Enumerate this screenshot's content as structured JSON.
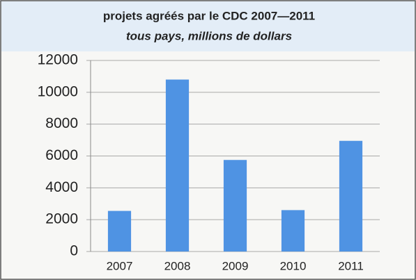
{
  "chart_data": {
    "type": "bar",
    "title": "projets agréés par le CDC 2007—2011",
    "subtitle": "tous pays, millions de dollars",
    "categories": [
      "2007",
      "2008",
      "2009",
      "2010",
      "2011"
    ],
    "values": [
      2550,
      10800,
      5750,
      2600,
      6950
    ],
    "color": "#4f93e3",
    "ylim": [
      0,
      12000
    ],
    "yticks": [
      0,
      2000,
      4000,
      6000,
      8000,
      10000,
      12000
    ],
    "grid": true
  }
}
